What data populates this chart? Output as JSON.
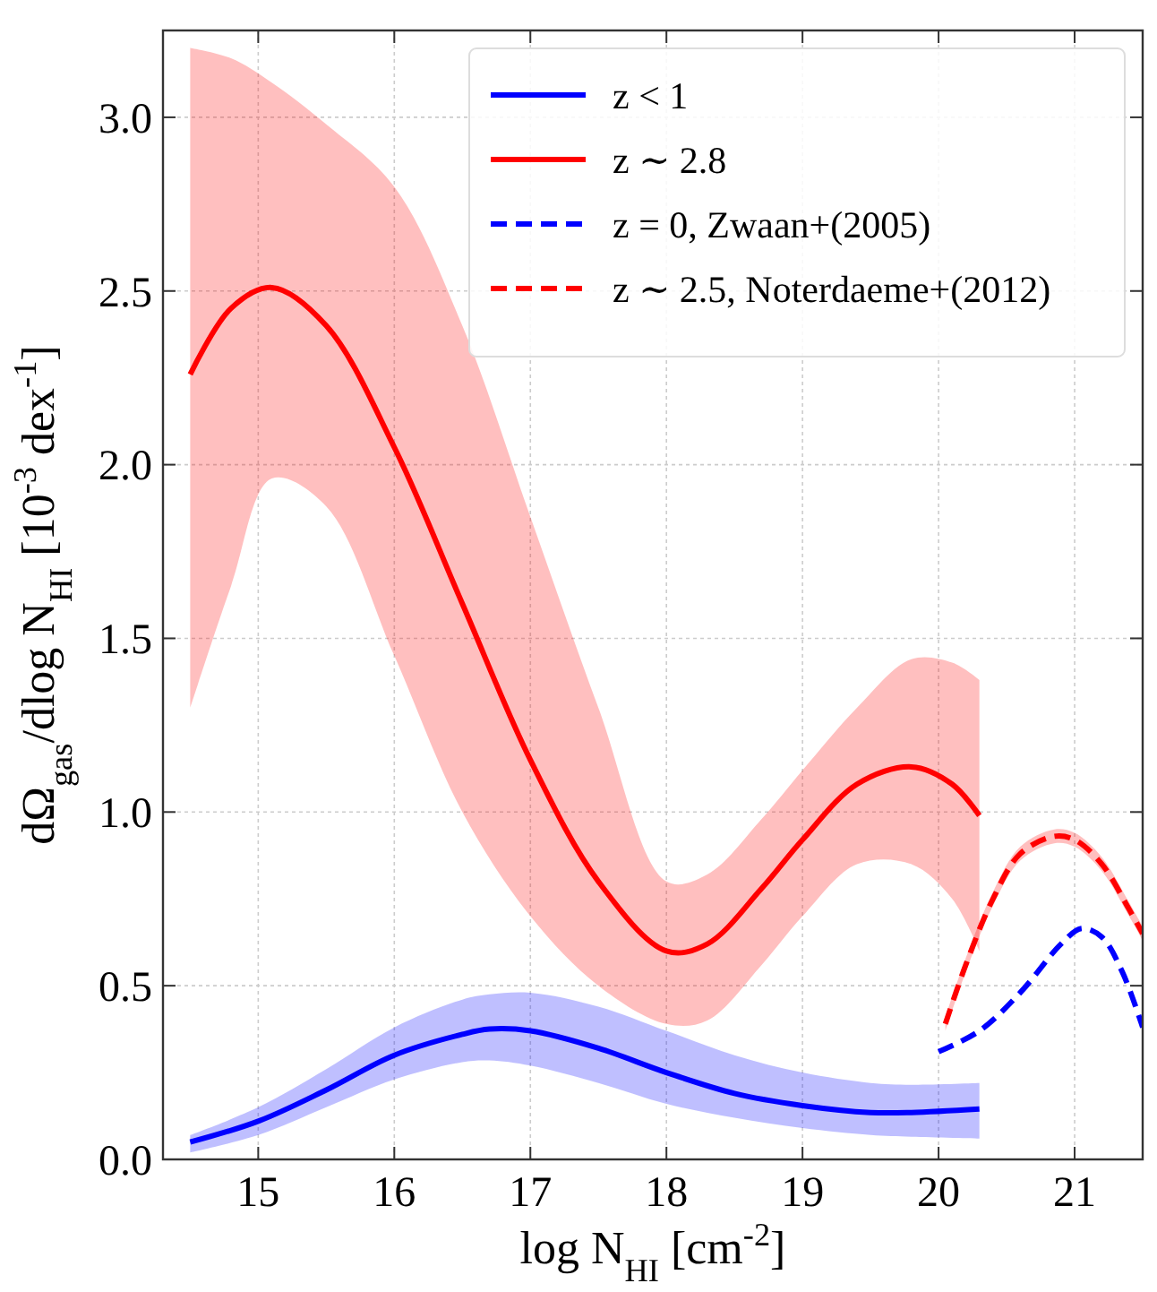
{
  "chart_data": {
    "type": "line",
    "xlabel": "log N$_{HI}$ [cm$^{-2}$]",
    "ylabel": "dΩ$_{gas}$/dlog N$_{HI}$ [10$^{-3}$ dex$^{-1}$]",
    "xlim": [
      14.3,
      21.5
    ],
    "xticks": [
      15,
      16,
      17,
      18,
      19,
      20,
      21
    ],
    "ylim": [
      0,
      3.25
    ],
    "yticks": [
      {
        "value": 0,
        "label": "0.0"
      },
      0.5,
      {
        "value": 1,
        "label": "1.0"
      },
      1.5,
      {
        "value": 2,
        "label": "2.0"
      },
      2.5,
      {
        "value": 3,
        "label": "3.0"
      }
    ],
    "grid": true,
    "legend": "top right",
    "series": [
      {
        "name": "z < 1",
        "color": "#0000ff",
        "line_style": "solid",
        "x": [
          14.5,
          15,
          15.5,
          16,
          16.5,
          16.7,
          17,
          17.5,
          18,
          18.5,
          19,
          19.5,
          19.8,
          20.3
        ],
        "values": [
          0.05,
          0.11,
          0.2,
          0.3,
          0.36,
          0.375,
          0.37,
          0.32,
          0.25,
          0.19,
          0.155,
          0.135,
          0.135,
          0.145
        ],
        "lower": [
          0.02,
          0.07,
          0.15,
          0.23,
          0.28,
          0.285,
          0.27,
          0.22,
          0.16,
          0.12,
          0.09,
          0.07,
          0.065,
          0.06
        ],
        "upper": [
          0.07,
          0.15,
          0.26,
          0.38,
          0.46,
          0.475,
          0.48,
          0.44,
          0.37,
          0.3,
          0.25,
          0.22,
          0.215,
          0.22
        ]
      },
      {
        "name": "z ∼ 2.8",
        "color": "#ff0000",
        "line_style": "solid",
        "x": [
          14.5,
          14.8,
          15.1,
          15.5,
          16,
          16.5,
          17,
          17.5,
          18,
          18.3,
          18.7,
          19,
          19.4,
          19.8,
          20.1,
          20.3
        ],
        "values": [
          2.26,
          2.45,
          2.51,
          2.4,
          2.05,
          1.6,
          1.15,
          0.8,
          0.6,
          0.62,
          0.78,
          0.92,
          1.08,
          1.13,
          1.08,
          0.99
        ],
        "lower": [
          1.3,
          1.65,
          1.96,
          1.88,
          1.45,
          1.0,
          0.7,
          0.5,
          0.39,
          0.4,
          0.56,
          0.7,
          0.85,
          0.85,
          0.75,
          0.6
        ],
        "upper": [
          3.2,
          3.17,
          3.1,
          2.98,
          2.8,
          2.4,
          1.85,
          1.3,
          0.8,
          0.82,
          0.98,
          1.12,
          1.3,
          1.44,
          1.43,
          1.38
        ]
      },
      {
        "name": "z = 0, Zwaan+(2005)",
        "color": "#0000ff",
        "line_style": "dashed",
        "x": [
          20.0,
          20.3,
          20.6,
          20.9,
          21.05,
          21.2,
          21.35,
          21.5
        ],
        "values": [
          0.31,
          0.37,
          0.48,
          0.62,
          0.665,
          0.64,
          0.54,
          0.38
        ]
      },
      {
        "name": "z ∼ 2.5, Noterdaeme+(2012)",
        "color": "#ff0000",
        "line_style": "dashed",
        "x": [
          20.05,
          20.2,
          20.4,
          20.6,
          20.85,
          21.0,
          21.2,
          21.4,
          21.5
        ],
        "values": [
          0.39,
          0.56,
          0.75,
          0.88,
          0.93,
          0.92,
          0.85,
          0.72,
          0.65
        ],
        "lower": [
          0.37,
          0.54,
          0.73,
          0.86,
          0.91,
          0.9,
          0.83,
          0.7,
          0.63
        ],
        "upper": [
          0.41,
          0.58,
          0.77,
          0.9,
          0.95,
          0.94,
          0.87,
          0.74,
          0.67
        ]
      }
    ]
  }
}
